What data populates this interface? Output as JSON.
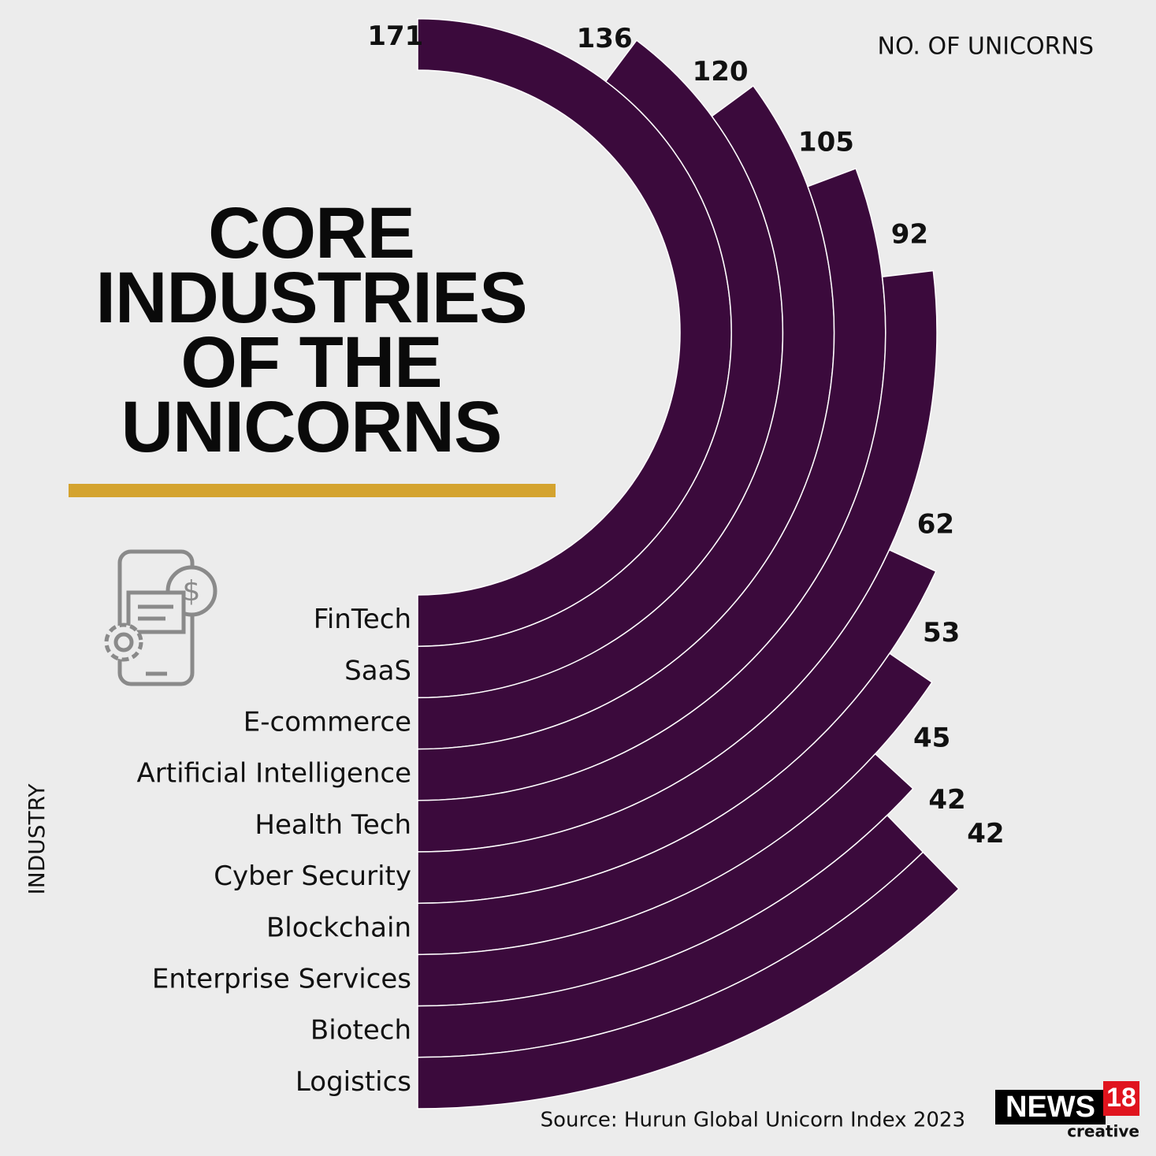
{
  "chart_data": {
    "type": "radial-bar",
    "title": "CORE INDUSTRIES OF THE UNICORNS",
    "value_axis_label": "NO. OF UNICORNS",
    "category_axis_label": "INDUSTRY",
    "categories": [
      "FinTech",
      "SaaS",
      "E-commerce",
      "Artificial Intelligence",
      "Health Tech",
      "Cyber Security",
      "Blockchain",
      "Enterprise Services",
      "Biotech",
      "Logistics"
    ],
    "values": [
      171,
      136,
      120,
      105,
      92,
      62,
      53,
      45,
      42,
      42
    ],
    "color": "#3b0a3c",
    "source": "Source: Hurun Global Unicorn Index 2023"
  },
  "branding": {
    "name": "NEWS",
    "number": "18",
    "tagline": "creative"
  }
}
